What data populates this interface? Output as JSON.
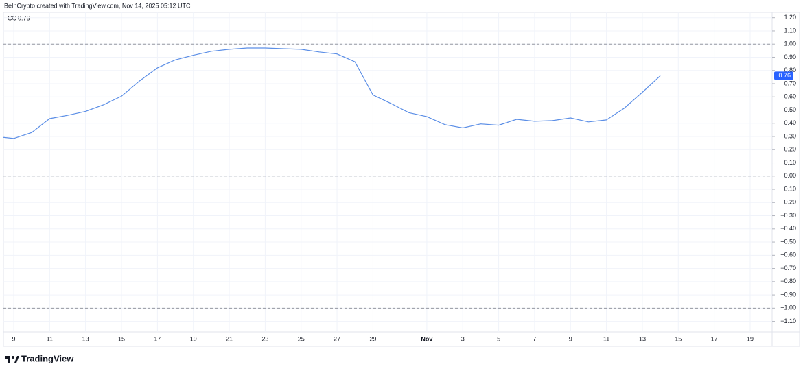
{
  "caption": "BeInCrypto created with TradingView.com, Nov 14, 2025 05:12 UTC",
  "brand": "TradingView",
  "chart_data": {
    "type": "line",
    "categories": [
      null,
      "9",
      null,
      "11",
      null,
      "13",
      null,
      "15",
      null,
      "17",
      null,
      "19",
      null,
      "21",
      null,
      "23",
      null,
      "25",
      null,
      "27",
      null,
      "29",
      null,
      null,
      "Nov",
      null,
      "3",
      null,
      "5",
      null,
      "7",
      null,
      "9",
      null,
      "11",
      null,
      "13",
      null,
      "15",
      null,
      "17",
      null,
      "19",
      null
    ],
    "series": [
      {
        "name": "CC",
        "color": "#5b8ee6",
        "values": [
          0.3,
          0.285,
          0.33,
          0.435,
          0.46,
          0.49,
          0.54,
          0.605,
          0.72,
          0.82,
          0.88,
          0.915,
          0.945,
          0.96,
          0.97,
          0.97,
          0.965,
          0.96,
          0.94,
          0.925,
          0.865,
          0.615,
          0.55,
          0.48,
          0.45,
          0.39,
          0.365,
          0.395,
          0.385,
          0.43,
          0.415,
          0.42,
          0.44,
          0.41,
          0.425,
          0.515,
          0.635,
          0.76,
          null,
          null,
          null,
          null,
          null,
          null
        ]
      }
    ],
    "ylim": [
      -1.18,
      1.24
    ],
    "yticks": [
      {
        "value": 1.2,
        "label": "1.20"
      },
      {
        "value": 1.1,
        "label": "1.10"
      },
      {
        "value": 1.0,
        "label": "1.00"
      },
      {
        "value": 0.9,
        "label": "0.90"
      },
      {
        "value": 0.8,
        "label": "0.80"
      },
      {
        "value": 0.7,
        "label": "0.70"
      },
      {
        "value": 0.6,
        "label": "0.60"
      },
      {
        "value": 0.5,
        "label": "0.50"
      },
      {
        "value": 0.4,
        "label": "0.40"
      },
      {
        "value": 0.3,
        "label": "0.30"
      },
      {
        "value": 0.2,
        "label": "0.20"
      },
      {
        "value": 0.1,
        "label": "0.10"
      },
      {
        "value": 0,
        "label": "0.00"
      },
      {
        "value": -0.1,
        "label": "−0.10"
      },
      {
        "value": -0.2,
        "label": "−0.20"
      },
      {
        "value": -0.3,
        "label": "−0.30"
      },
      {
        "value": -0.4,
        "label": "−0.40"
      },
      {
        "value": -0.5,
        "label": "−0.50"
      },
      {
        "value": -0.6,
        "label": "−0.60"
      },
      {
        "value": -0.7,
        "label": "−0.70"
      },
      {
        "value": -0.8,
        "label": "−0.80"
      },
      {
        "value": -0.9,
        "label": "−0.90"
      },
      {
        "value": -1.0,
        "label": "−1.00"
      },
      {
        "value": -1.1,
        "label": "−1.10"
      }
    ],
    "levels": [
      1,
      0,
      -1
    ],
    "grid": true
  }
}
